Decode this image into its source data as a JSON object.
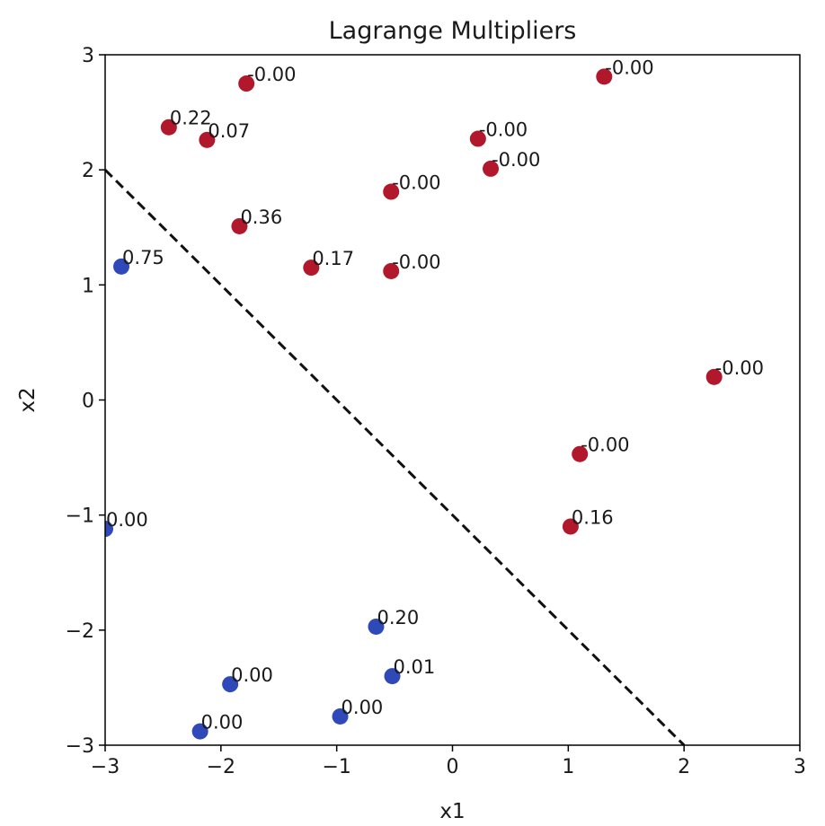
{
  "chart_data": {
    "type": "scatter",
    "title": "Lagrange Multipliers",
    "xlabel": "x1",
    "ylabel": "x2",
    "xlim": [
      -3,
      3
    ],
    "ylim": [
      -3,
      3
    ],
    "xticks": [
      "−3",
      "−2",
      "−1",
      "0",
      "1",
      "2",
      "3"
    ],
    "yticks": [
      "−3",
      "−2",
      "−1",
      "0",
      "1",
      "2",
      "3"
    ],
    "grid": false,
    "colors": {
      "class_pos": "#b2182b",
      "class_neg": "#2f49b8",
      "boundary": "#111111",
      "axes": "#000000"
    },
    "points": [
      {
        "x": -1.78,
        "y": 2.75,
        "class": 1,
        "label": "-0.00"
      },
      {
        "x": 1.31,
        "y": 2.81,
        "class": 1,
        "label": "-0.00"
      },
      {
        "x": -2.45,
        "y": 2.37,
        "class": 1,
        "label": "0.22"
      },
      {
        "x": -2.12,
        "y": 2.26,
        "class": 1,
        "label": "0.07"
      },
      {
        "x": 0.22,
        "y": 2.27,
        "class": 1,
        "label": "-0.00"
      },
      {
        "x": 0.33,
        "y": 2.01,
        "class": 1,
        "label": "-0.00"
      },
      {
        "x": -0.53,
        "y": 1.81,
        "class": 1,
        "label": "-0.00"
      },
      {
        "x": -1.84,
        "y": 1.51,
        "class": 1,
        "label": "0.36"
      },
      {
        "x": -1.22,
        "y": 1.15,
        "class": 1,
        "label": "0.17"
      },
      {
        "x": -0.53,
        "y": 1.12,
        "class": 1,
        "label": "-0.00"
      },
      {
        "x": 2.26,
        "y": 0.2,
        "class": 1,
        "label": "-0.00"
      },
      {
        "x": 1.1,
        "y": -0.47,
        "class": 1,
        "label": "-0.00"
      },
      {
        "x": 1.02,
        "y": -1.1,
        "class": 1,
        "label": "0.16"
      },
      {
        "x": -2.86,
        "y": 1.16,
        "class": -1,
        "label": "0.75"
      },
      {
        "x": -3.0,
        "y": -1.12,
        "class": -1,
        "label": "0.00"
      },
      {
        "x": -0.66,
        "y": -1.97,
        "class": -1,
        "label": "0.20"
      },
      {
        "x": -0.52,
        "y": -2.4,
        "class": -1,
        "label": "0.01"
      },
      {
        "x": -1.92,
        "y": -2.47,
        "class": -1,
        "label": "0.00"
      },
      {
        "x": -0.97,
        "y": -2.75,
        "class": -1,
        "label": "0.00"
      },
      {
        "x": -2.18,
        "y": -2.88,
        "class": -1,
        "label": "0.00"
      }
    ],
    "decision_boundary": {
      "x": [
        -3,
        2
      ],
      "y": [
        2,
        -3
      ],
      "style": "dashed"
    }
  }
}
